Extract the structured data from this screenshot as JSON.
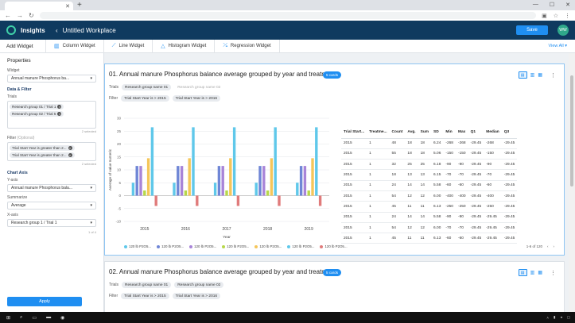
{
  "browser": {
    "tab_title": "",
    "new_tab": "+",
    "min": "—",
    "max": "☐",
    "close": "✕"
  },
  "app": {
    "brand": "Insights",
    "workspace": "Untitled Workplace",
    "save": "Save",
    "avatar": "WW",
    "back": "‹"
  },
  "widgetbar": {
    "title": "Add Widget",
    "buttons": [
      "Column Widget",
      "Line Widget",
      "Histogram Widget",
      "Regression Widget"
    ],
    "view_all": "View All ▾"
  },
  "sidebar": {
    "title": "Properties",
    "widget_label": "Widget",
    "widget_value": "Annual manure Phosphorus ba...",
    "data_filter": "Data & Filter",
    "trials_label": "Trials",
    "trials": [
      "Research group 01 / Trial 1",
      "Research group 02 / Trial 5"
    ],
    "trials_count": "2 selected",
    "filter_label": "Filter",
    "filter_hint": "(Optional)",
    "filters": [
      "Trial Start Year is greater than 2...",
      "Trial Start Year is greater than 2..."
    ],
    "filters_count": "2 selected",
    "chart_axis": "Chart Axis",
    "y_label": "Y-axis",
    "y_value": "Annual manure Phosphorus bala...",
    "summarize_label": "Summarize",
    "summarize_value": "Average",
    "x_label": "X-axis",
    "x_value": "Research group 1 / Trial 1",
    "x_count": "1 of 4",
    "apply": "Apply"
  },
  "card1": {
    "title": "01. Annual manure Phosphorus balance average grouped by year and treatment",
    "badge": "5 cards",
    "trials_label": "Trials",
    "trials": [
      "Research group name 01",
      "Research group name 02"
    ],
    "filter_label": "Filter",
    "filters": [
      "Trial Start Year is > 2015",
      "Trial Start Year is > 2016"
    ],
    "pager": "1-6 of 120",
    "table": {
      "headers": [
        "Trial Start...",
        "Treatme...",
        "Count",
        "Avg.",
        "Sum",
        "SD",
        "Min",
        "Max",
        "Q1",
        "Median",
        "Q3"
      ],
      "rows": [
        [
          "2015",
          "1",
          "48",
          "18",
          "18",
          "6.24",
          "-268",
          "-268",
          "-29.45",
          "-268",
          "-29.45"
        ],
        [
          "2015",
          "1",
          "55",
          "18",
          "18",
          "5.06",
          "-150",
          "-150",
          "-29.45",
          "-150",
          "-29.45"
        ],
        [
          "2015",
          "1",
          "32",
          "25",
          "25",
          "6.18",
          "-90",
          "-90",
          "-29.45",
          "-90",
          "-29.45"
        ],
        [
          "2015",
          "1",
          "18",
          "13",
          "13",
          "6.15",
          "-70",
          "-70",
          "-29.45",
          "-70",
          "-29.45"
        ],
        [
          "2015",
          "1",
          "24",
          "14",
          "14",
          "5.58",
          "-60",
          "-60",
          "-29.45",
          "-60",
          "-29.45"
        ],
        [
          "2015",
          "1",
          "54",
          "12",
          "12",
          "6.00",
          "-400",
          "-400",
          "-29.45",
          "-400",
          "-29.45"
        ],
        [
          "2015",
          "1",
          "45",
          "11",
          "11",
          "6.13",
          "-250",
          "-250",
          "-29.45",
          "-250",
          "-29.45"
        ],
        [
          "2015",
          "1",
          "24",
          "14",
          "14",
          "5.58",
          "-90",
          "-90",
          "-29.45",
          "-29.45",
          "-29.45"
        ],
        [
          "2015",
          "1",
          "54",
          "12",
          "12",
          "6.00",
          "-70",
          "-70",
          "-29.45",
          "-29.45",
          "-29.45"
        ],
        [
          "2015",
          "1",
          "45",
          "11",
          "11",
          "6.13",
          "-60",
          "-60",
          "-29.45",
          "-29.45",
          "-29.45"
        ]
      ]
    }
  },
  "card2": {
    "title": "02. Annual manure Phosphorus balance average grouped by year and treatment",
    "badge": "5 cards",
    "trials_label": "Trials",
    "trials": [
      "Research group name 01",
      "Research group name 02"
    ],
    "filter_label": "Filter",
    "filters": [
      "Trial Start Year is > 2015",
      "Trial Start Year is > 2016"
    ]
  },
  "chart_data": {
    "type": "bar",
    "categories": [
      "2015",
      "2016",
      "2017",
      "2018",
      "2019"
    ],
    "xlabel": "Year",
    "ylabel": "Average of value numeric",
    "ylim": [
      -10,
      30
    ],
    "yticks": [
      -10,
      -5,
      0,
      5,
      10,
      15,
      20,
      25,
      30
    ],
    "series": [
      {
        "name": "120 lb P2O5...",
        "color": "#5fc8ea",
        "values": [
          5,
          5,
          5,
          5,
          5
        ]
      },
      {
        "name": "120 lb P2O5...",
        "color": "#6f86d6",
        "values": [
          11.5,
          11.5,
          11.5,
          11.5,
          11.5
        ]
      },
      {
        "name": "120 lb P2O5...",
        "color": "#a884d8",
        "values": [
          11.5,
          11.5,
          11.5,
          11.5,
          11.5
        ]
      },
      {
        "name": "120 lb P2O5...",
        "color": "#b7d84a",
        "values": [
          2,
          2,
          2,
          2,
          2
        ]
      },
      {
        "name": "120 lb P2O5...",
        "color": "#f5c65a",
        "values": [
          14.5,
          14.5,
          14.5,
          14.5,
          14.5
        ]
      },
      {
        "name": "120 lb P2O5...",
        "color": "#5fc8ea",
        "values": [
          26.5,
          26.5,
          26.5,
          26.5,
          26.5
        ]
      },
      {
        "name": "120 lb P2O5...",
        "color": "#e07b7b",
        "values": [
          -4,
          -4,
          -4,
          -4,
          -4
        ]
      }
    ]
  }
}
